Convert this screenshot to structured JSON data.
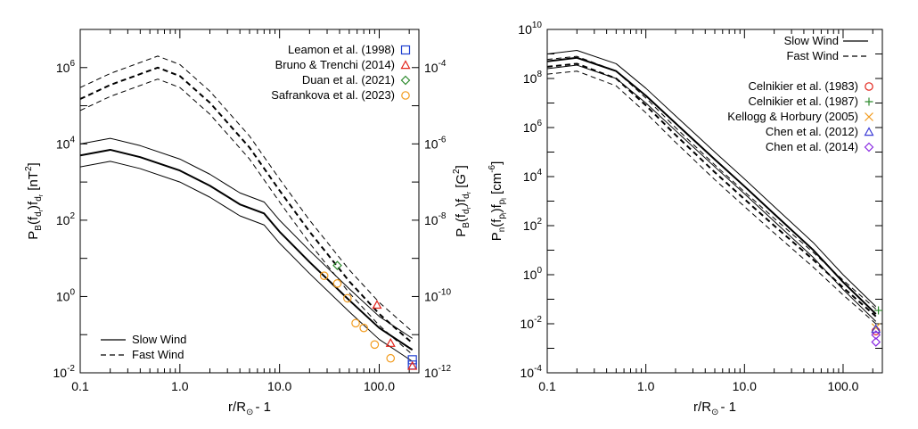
{
  "chart_data": [
    {
      "type": "line",
      "panel": "left",
      "xscale": "log",
      "yscale": "log",
      "xlim": [
        0.1,
        250
      ],
      "ylim": [
        0.01,
        10000000
      ],
      "xticks": [
        {
          "value": 0.1,
          "label": "0.1"
        },
        {
          "value": 1,
          "label": "1.0"
        },
        {
          "value": 10,
          "label": "10.0"
        },
        {
          "value": 100,
          "label": "100.0"
        }
      ],
      "yticks": [
        {
          "value": 0.01,
          "base": "10",
          "exp": "-2"
        },
        {
          "value": 1,
          "base": "10",
          "exp": "0"
        },
        {
          "value": 100,
          "base": "10",
          "exp": "2"
        },
        {
          "value": 10000,
          "base": "10",
          "exp": "4"
        },
        {
          "value": 1000000,
          "base": "10",
          "exp": "6"
        }
      ],
      "y2ticks": [
        {
          "value": 0.01,
          "base": "10",
          "exp": "-12"
        },
        {
          "value": 1,
          "base": "10",
          "exp": "-10"
        },
        {
          "value": 100,
          "base": "10",
          "exp": "-8"
        },
        {
          "value": 10000,
          "base": "10",
          "exp": "-6"
        },
        {
          "value": 1000000,
          "base": "10",
          "exp": "-4"
        }
      ],
      "xlabel": {
        "main": "r/R",
        "sun": "⊙",
        "tail": "- 1"
      },
      "ylabel": {
        "p": "P",
        "p_sub": "B",
        "a": "(f",
        "a_sub": "d",
        "a_subsub": "r",
        "b": ")f",
        "b_sub": "d",
        "b_subsub": "r",
        "unit": " [nT",
        "unit_exp": "2",
        "unit_end": "]"
      },
      "y2label": {
        "p": "P",
        "p_sub": "B",
        "a": "(f",
        "a_sub": "d",
        "a_subsub": "r",
        "b": ")f",
        "b_sub": "d",
        "b_subsub": "r",
        "unit": " [G",
        "unit_exp": "2",
        "unit_end": "]"
      },
      "legend_position": "top-right",
      "legend": [
        {
          "label": "Leamon et al. (1998)",
          "marker": "square",
          "color": "#1f3fd0"
        },
        {
          "label": "Bruno & Trenchi (2014)",
          "marker": "triangle",
          "color": "#e2231a"
        },
        {
          "label": "Duan et al. (2021)",
          "marker": "diamond",
          "color": "#2e8b2e"
        },
        {
          "label": "Safrankova et al. (2023)",
          "marker": "circle",
          "color": "#f29b1d"
        }
      ],
      "line_legend_position": "bottom-left",
      "line_legend": [
        {
          "label": "Slow Wind",
          "style": "solid"
        },
        {
          "label": "Fast Wind",
          "style": "dashed"
        }
      ],
      "series": [
        {
          "name": "Slow Wind",
          "style": "solid",
          "width": 2,
          "x": [
            0.1,
            0.2,
            0.4,
            1,
            2,
            4,
            7,
            10,
            20,
            50,
            100,
            215
          ],
          "y": [
            5000,
            7000,
            4500,
            2000,
            800,
            260,
            150,
            50,
            8,
            0.8,
            0.15,
            0.04
          ]
        },
        {
          "name": "Slow Wind upper",
          "style": "solid",
          "width": 1,
          "x": [
            0.1,
            0.2,
            0.4,
            1,
            2,
            4,
            7,
            10,
            20,
            50,
            100,
            215
          ],
          "y": [
            10000,
            14000,
            9000,
            4000,
            1600,
            520,
            300,
            100,
            16,
            1.6,
            0.3,
            0.08
          ]
        },
        {
          "name": "Slow Wind lower",
          "style": "solid",
          "width": 1,
          "x": [
            0.1,
            0.2,
            0.4,
            1,
            2,
            4,
            7,
            10,
            20,
            50,
            100,
            215
          ],
          "y": [
            2500,
            3500,
            2250,
            1000,
            400,
            130,
            75,
            25,
            4,
            0.4,
            0.075,
            0.02
          ]
        },
        {
          "name": "Fast Wind",
          "style": "dashed",
          "width": 2,
          "x": [
            0.1,
            0.2,
            0.6,
            1,
            2,
            5,
            10,
            20,
            50,
            100,
            215
          ],
          "y": [
            150000,
            350000,
            1000000,
            600000,
            120000,
            8000,
            600,
            50,
            2.5,
            0.35,
            0.06
          ]
        },
        {
          "name": "Fast Wind upper",
          "style": "dashed",
          "width": 1,
          "x": [
            0.1,
            0.2,
            0.6,
            1,
            2,
            5,
            10,
            20,
            50,
            100,
            215
          ],
          "y": [
            300000,
            700000,
            2000000,
            1200000,
            240000,
            16000,
            1200,
            100,
            5,
            0.7,
            0.12
          ]
        },
        {
          "name": "Fast Wind lower",
          "style": "dashed",
          "width": 1,
          "x": [
            0.1,
            0.2,
            0.6,
            1,
            2,
            5,
            10,
            20,
            50,
            100,
            215
          ],
          "y": [
            75000,
            175000,
            500000,
            300000,
            60000,
            4000,
            300,
            25,
            1.25,
            0.175,
            0.03
          ]
        }
      ],
      "markers": [
        {
          "x": 215,
          "y": 0.022,
          "marker": "square",
          "color": "#1f3fd0"
        },
        {
          "x": 215,
          "y": 0.016,
          "marker": "square",
          "color": "#1f3fd0"
        },
        {
          "x": 95,
          "y": 0.6,
          "marker": "triangle",
          "color": "#e2231a"
        },
        {
          "x": 130,
          "y": 0.06,
          "marker": "triangle",
          "color": "#e2231a"
        },
        {
          "x": 215,
          "y": 0.015,
          "marker": "triangle",
          "color": "#e2231a"
        },
        {
          "x": 38,
          "y": 6.5,
          "marker": "diamond",
          "color": "#2e8b2e"
        },
        {
          "x": 28,
          "y": 3.5,
          "marker": "circle",
          "color": "#f29b1d"
        },
        {
          "x": 38,
          "y": 2.2,
          "marker": "circle",
          "color": "#f29b1d"
        },
        {
          "x": 48,
          "y": 0.9,
          "marker": "circle",
          "color": "#f29b1d"
        },
        {
          "x": 58,
          "y": 0.2,
          "marker": "circle",
          "color": "#f29b1d"
        },
        {
          "x": 70,
          "y": 0.15,
          "marker": "circle",
          "color": "#f29b1d"
        },
        {
          "x": 90,
          "y": 0.055,
          "marker": "circle",
          "color": "#f29b1d"
        },
        {
          "x": 130,
          "y": 0.024,
          "marker": "circle",
          "color": "#f29b1d"
        }
      ]
    },
    {
      "type": "line",
      "panel": "right",
      "xscale": "log",
      "yscale": "log",
      "xlim": [
        0.1,
        250
      ],
      "ylim": [
        0.0001,
        10000000000
      ],
      "xticks": [
        {
          "value": 0.1,
          "label": "0.1"
        },
        {
          "value": 1,
          "label": "1.0"
        },
        {
          "value": 10,
          "label": "10.0"
        },
        {
          "value": 100,
          "label": "100.0"
        }
      ],
      "yticks": [
        {
          "value": 0.0001,
          "base": "10",
          "exp": "-4"
        },
        {
          "value": 0.01,
          "base": "10",
          "exp": "-2"
        },
        {
          "value": 1,
          "base": "10",
          "exp": "0"
        },
        {
          "value": 100,
          "base": "10",
          "exp": "2"
        },
        {
          "value": 10000,
          "base": "10",
          "exp": "4"
        },
        {
          "value": 1000000,
          "base": "10",
          "exp": "6"
        },
        {
          "value": 100000000,
          "base": "10",
          "exp": "8"
        },
        {
          "value": 10000000000,
          "base": "10",
          "exp": "10"
        }
      ],
      "xlabel": {
        "main": "r/R",
        "sun": "⊙",
        "tail": "- 1"
      },
      "ylabel": {
        "p": "P",
        "p_sub": "n",
        "a": "(f",
        "a_sub": "p",
        "a_subsub": "l",
        "b": ")f",
        "b_sub": "p",
        "b_subsub": "l",
        "unit": " [cm",
        "unit_exp": "-6",
        "unit_end": "]"
      },
      "legend_position": "top-right",
      "line_legend": [
        {
          "label": "Slow Wind",
          "style": "solid"
        },
        {
          "label": "Fast Wind",
          "style": "dashed"
        }
      ],
      "legend": [
        {
          "label": "Celnikier et al. (1983)",
          "marker": "circle",
          "color": "#e2231a"
        },
        {
          "label": "Celnikier et al. (1987)",
          "marker": "plus",
          "color": "#2e8b2e"
        },
        {
          "label": "Kellogg & Horbury (2005)",
          "marker": "cross",
          "color": "#f29b1d"
        },
        {
          "label": "Chen et al. (2012)",
          "marker": "triangle",
          "color": "#3b3bd6"
        },
        {
          "label": "Chen et al. (2014)",
          "marker": "diamond",
          "color": "#8a2be2"
        }
      ],
      "series": [
        {
          "name": "Slow Wind",
          "style": "solid",
          "width": 2,
          "x": [
            0.1,
            0.2,
            0.5,
            1,
            2,
            5,
            10,
            20,
            50,
            100,
            215
          ],
          "y": [
            500000000,
            700000000,
            200000000,
            20000000,
            1500000,
            50000,
            4000,
            300,
            10,
            0.5,
            0.025
          ]
        },
        {
          "name": "Slow Wind upper",
          "style": "solid",
          "width": 1,
          "x": [
            0.1,
            0.2,
            0.5,
            1,
            2,
            5,
            10,
            20,
            50,
            100,
            215
          ],
          "y": [
            1000000000,
            1400000000,
            400000000,
            40000000,
            3000000,
            100000,
            8000,
            600,
            20,
            1,
            0.05
          ]
        },
        {
          "name": "Slow Wind lower",
          "style": "solid",
          "width": 1,
          "x": [
            0.1,
            0.2,
            0.5,
            1,
            2,
            5,
            10,
            20,
            50,
            100,
            215
          ],
          "y": [
            250000000,
            350000000,
            100000000,
            10000000,
            750000,
            25000,
            2000,
            150,
            5,
            0.25,
            0.0125
          ]
        },
        {
          "name": "Fast Wind",
          "style": "dashed",
          "width": 2,
          "x": [
            0.1,
            0.2,
            0.5,
            1,
            2,
            5,
            10,
            20,
            50,
            100,
            215
          ],
          "y": [
            300000000,
            400000000,
            100000000,
            8000000,
            500000,
            15000,
            1200,
            100,
            4,
            0.3,
            0.02
          ]
        },
        {
          "name": "Fast Wind upper",
          "style": "dashed",
          "width": 1,
          "x": [
            0.1,
            0.2,
            0.5,
            1,
            2,
            5,
            10,
            20,
            50,
            100,
            215
          ],
          "y": [
            600000000,
            800000000,
            200000000,
            16000000,
            1000000,
            30000,
            2400,
            200,
            8,
            0.6,
            0.04
          ]
        },
        {
          "name": "Fast Wind lower",
          "style": "dashed",
          "width": 1,
          "x": [
            0.1,
            0.2,
            0.5,
            1,
            2,
            5,
            10,
            20,
            50,
            100,
            215
          ],
          "y": [
            150000000,
            200000000,
            50000000,
            4000000,
            250000,
            7500,
            600,
            50,
            2,
            0.15,
            0.01
          ]
        }
      ],
      "markers": [
        {
          "x": 215,
          "y": 0.005,
          "marker": "circle",
          "color": "#e2231a"
        },
        {
          "x": 228,
          "y": 0.035,
          "marker": "plus",
          "color": "#2e8b2e"
        },
        {
          "x": 215,
          "y": 0.007,
          "marker": "cross",
          "color": "#f29b1d"
        },
        {
          "x": 215,
          "y": 0.006,
          "marker": "triangle",
          "color": "#3b3bd6"
        },
        {
          "x": 215,
          "y": 0.0035,
          "marker": "diamond",
          "color": "#8a2be2"
        },
        {
          "x": 215,
          "y": 0.0018,
          "marker": "diamond",
          "color": "#8a2be2"
        }
      ]
    }
  ]
}
